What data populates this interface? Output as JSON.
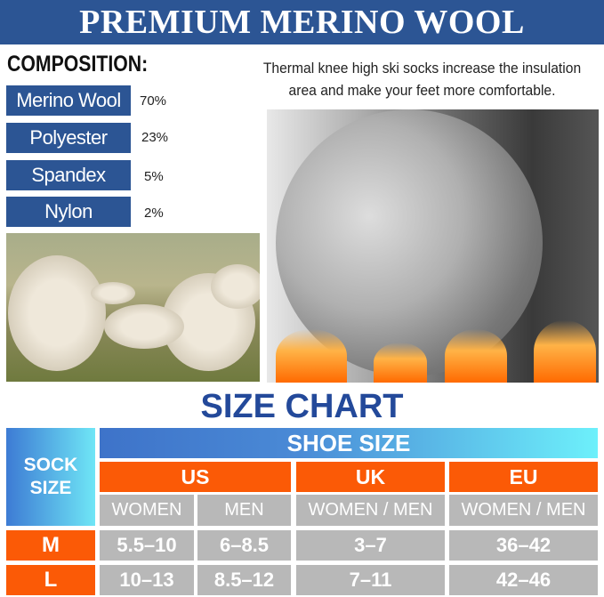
{
  "header": {
    "title": "PREMIUM MERINO WOOL"
  },
  "composition": {
    "title": "COMPOSITION:",
    "items": [
      {
        "material": "Merino Wool",
        "percent": "70%"
      },
      {
        "material": "Polyester",
        "percent": "23%"
      },
      {
        "material": "Spandex",
        "percent": "5%"
      },
      {
        "material": "Nylon",
        "percent": "2%"
      }
    ]
  },
  "description": "Thermal knee high ski socks increase the insulation area and make your feet more comfortable.",
  "size_chart": {
    "title": "SIZE CHART",
    "sock_size_label": "SOCK SIZE",
    "shoe_size_label": "SHOE SIZE",
    "regions": [
      "US",
      "UK",
      "EU"
    ],
    "subheaders": [
      "WOMEN",
      "MEN",
      "WOMEN / MEN",
      "WOMEN / MEN"
    ],
    "rows": [
      {
        "size": "M",
        "us_women": "5.5–10",
        "us_men": "6–8.5",
        "uk": "3–7",
        "eu": "36–42"
      },
      {
        "size": "L",
        "us_women": "10–13",
        "us_men": "8.5–12",
        "uk": "7–11",
        "eu": "42–46"
      }
    ]
  },
  "colors": {
    "brand_blue": "#2c5594",
    "orange": "#fb5a06",
    "gray": "#b8b8b8",
    "title_blue": "#23499a"
  }
}
